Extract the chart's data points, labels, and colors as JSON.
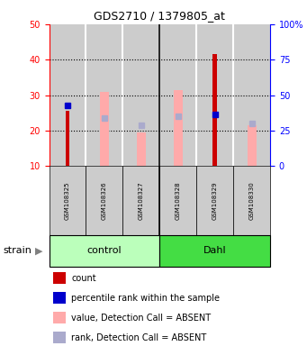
{
  "title": "GDS2710 / 1379805_at",
  "samples": [
    "GSM108325",
    "GSM108326",
    "GSM108327",
    "GSM108328",
    "GSM108329",
    "GSM108330"
  ],
  "ylim_left": [
    10,
    50
  ],
  "ylim_right": [
    0,
    100
  ],
  "yticks_left": [
    10,
    20,
    30,
    40,
    50
  ],
  "yticks_right": [
    0,
    25,
    50,
    75,
    100
  ],
  "ytick_labels_right": [
    "0",
    "25",
    "50",
    "75",
    "100%"
  ],
  "red_bars": [
    25.5,
    null,
    null,
    null,
    41.5,
    null
  ],
  "pink_bars": [
    null,
    31.0,
    19.5,
    31.5,
    null,
    21.5
  ],
  "blue_squares": [
    27.0,
    null,
    null,
    null,
    24.5,
    null
  ],
  "lavender_squares": [
    null,
    23.5,
    21.5,
    24.0,
    null,
    22.0
  ],
  "bar_bottom": 10,
  "red_color": "#cc0000",
  "pink_color": "#ffaaaa",
  "blue_color": "#0000cc",
  "lavender_color": "#aaaacc",
  "control_bg": "#bbffbb",
  "dahl_bg": "#44dd44",
  "gray_bg": "#cccccc",
  "legend_items": [
    {
      "color": "#cc0000",
      "label": "count"
    },
    {
      "color": "#0000cc",
      "label": "percentile rank within the sample"
    },
    {
      "color": "#ffaaaa",
      "label": "value, Detection Call = ABSENT"
    },
    {
      "color": "#aaaacc",
      "label": "rank, Detection Call = ABSENT"
    }
  ]
}
